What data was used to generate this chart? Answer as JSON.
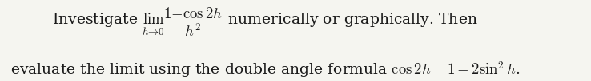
{
  "background_color": "#f5f5f0",
  "text_color": "#1a1a1a",
  "line1_text": "Investigate $\\lim_{h\\to 0}\\dfrac{1-\\cos 2h}{h^2}$ numerically or graphically. Then",
  "line2_text": "evaluate the limit using the double angle formula $\\cos 2h = 1 - 2\\sin^2 h$.",
  "fontsize": 13.5,
  "fig_width": 7.38,
  "fig_height": 1.02,
  "dpi": 100
}
